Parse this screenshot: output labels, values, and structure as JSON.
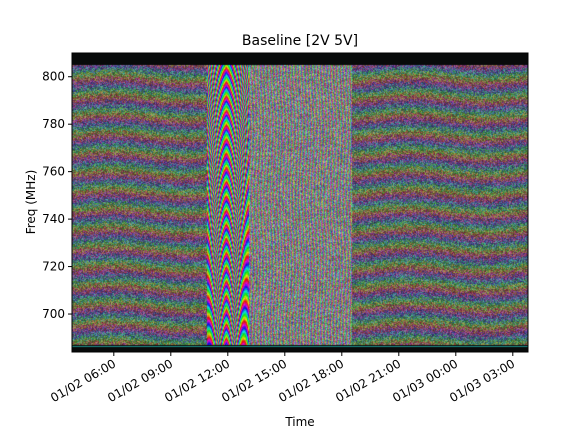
{
  "chart_data": {
    "type": "heatmap",
    "title": "Baseline [2V 5V]",
    "xlabel": "Time",
    "ylabel": "Freq (MHz)",
    "x_ticks": [
      "01/02 06:00",
      "01/02 09:00",
      "01/02 12:00",
      "01/02 15:00",
      "01/02 18:00",
      "01/02 21:00",
      "01/03 00:00",
      "01/03 03:00"
    ],
    "x_tick_hours": [
      6,
      9,
      12,
      15,
      18,
      21,
      24,
      27
    ],
    "xlim_hours": [
      3.8,
      27.8
    ],
    "y_ticks": [
      700,
      720,
      740,
      760,
      780,
      800
    ],
    "ylim": [
      684,
      810
    ],
    "colormap": "cyclic phase (rainbow hue)",
    "features": {
      "strong_fringe_hours": [
        10.9,
        13.1
      ],
      "fringe_vertex_hour": 11.9,
      "weak_fringe_hours": [
        13.1,
        18.5
      ],
      "flagged_band_mhz": [
        [
          684,
          687
        ],
        [
          805,
          810
        ]
      ],
      "background_fringe_period_mhz": 8
    }
  }
}
